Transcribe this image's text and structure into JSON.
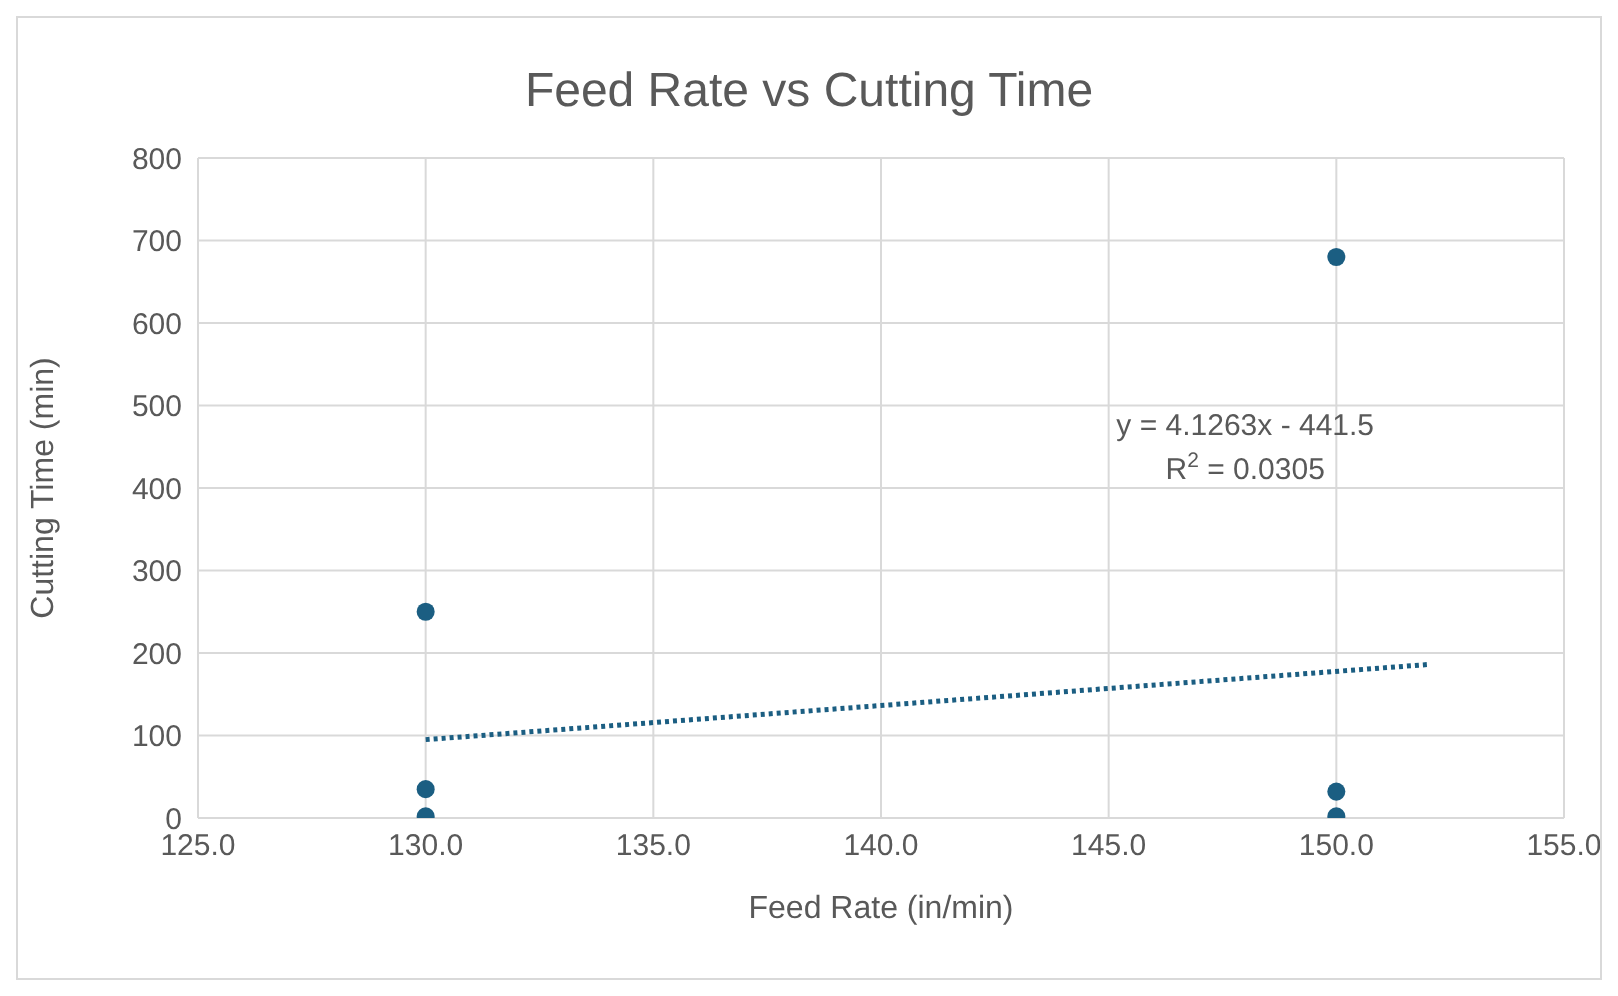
{
  "chart_data": {
    "type": "scatter",
    "title": "Feed Rate vs Cutting Time",
    "xlabel": "Feed Rate (in/min)",
    "ylabel": "Cutting Time (min)",
    "series": [
      {
        "color": "#1b5e82",
        "x": [
          130,
          130,
          130,
          150,
          150,
          150
        ],
        "values": [
          250,
          35,
          2,
          680,
          32,
          2
        ],
        "marker": "circle"
      },
      {
        "type": "line",
        "color": "#1b5e82",
        "x": [
          130,
          152
        ],
        "values": [
          95,
          186
        ],
        "marker": "none",
        "line_style": "dotted"
      }
    ],
    "xlim": [
      125,
      155
    ],
    "xticks": [
      {
        "value": 125,
        "label": "125.0"
      },
      {
        "value": 130,
        "label": "130.0"
      },
      {
        "value": 135,
        "label": "135.0"
      },
      {
        "value": 140,
        "label": "140.0"
      },
      {
        "value": 145,
        "label": "145.0"
      },
      {
        "value": 150,
        "label": "150.0"
      },
      {
        "value": 155,
        "label": "155.0"
      }
    ],
    "ylim": [
      0,
      800
    ],
    "yticks": [
      0,
      100,
      200,
      300,
      400,
      500,
      600,
      700,
      800
    ],
    "grid": true,
    "annotations": [
      "y = 4.1263x - 441.5",
      "R$^{2}$ = 0.0305"
    ]
  }
}
